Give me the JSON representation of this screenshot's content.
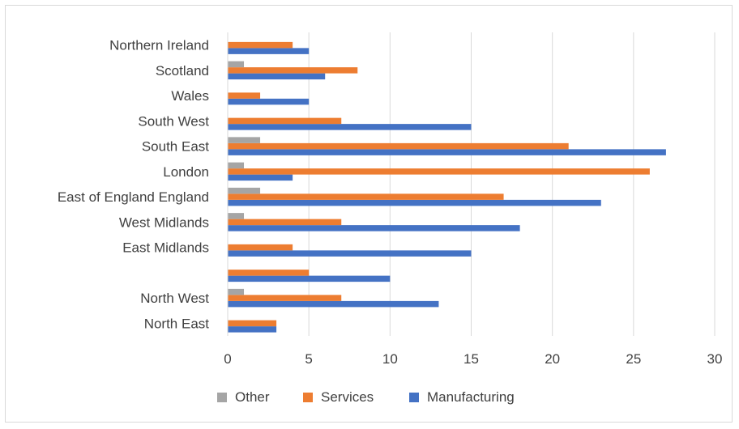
{
  "chart_data": {
    "type": "bar",
    "orientation": "horizontal",
    "categories": [
      "North East",
      "North West",
      "",
      "East Midlands",
      "West Midlands",
      "East of England England",
      "London",
      "South East",
      "South West",
      "Wales",
      "Scotland",
      "Northern Ireland"
    ],
    "series": [
      {
        "name": "Manufacturing",
        "color": "#4472c4",
        "values": [
          3,
          13,
          10,
          15,
          18,
          23,
          4,
          27,
          15,
          5,
          6,
          5
        ]
      },
      {
        "name": "Services",
        "color": "#ed7d31",
        "values": [
          3,
          7,
          5,
          4,
          7,
          17,
          26,
          21,
          7,
          2,
          8,
          4
        ]
      },
      {
        "name": "Other",
        "color": "#a5a5a5",
        "values": [
          0,
          1,
          0,
          0,
          1,
          2,
          1,
          2,
          0,
          0,
          1,
          0
        ]
      }
    ],
    "xlim": [
      0,
      30
    ],
    "xticks": [
      "0",
      "5",
      "10",
      "15",
      "20",
      "25",
      "30"
    ],
    "grid": "vertical",
    "legend_position": "bottom",
    "legend_order": [
      "Other",
      "Services",
      "Manufacturing"
    ]
  }
}
